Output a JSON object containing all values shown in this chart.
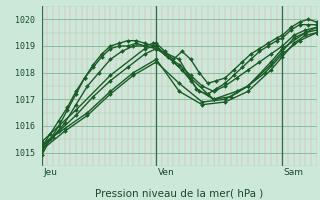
{
  "title": "Pression niveau de la mer( hPa )",
  "ylabel_values": [
    1015,
    1016,
    1017,
    1018,
    1019,
    1020
  ],
  "ylim": [
    1014.5,
    1020.5
  ],
  "xlim": [
    0,
    96
  ],
  "background_color": "#cce8d8",
  "line_color": "#1a5c28",
  "marker_color": "#1a5c28",
  "day_ticks": [
    0,
    40,
    84
  ],
  "day_labels": [
    "Jeu",
    "Ven",
    "Sam"
  ],
  "series": [
    {
      "x": [
        0,
        3,
        6,
        9,
        12,
        15,
        18,
        21,
        24,
        27,
        30,
        33,
        36,
        39,
        40,
        43,
        46,
        49,
        52,
        55,
        58,
        61,
        64,
        67,
        70,
        73,
        76,
        79,
        82,
        84,
        87,
        90,
        93,
        96
      ],
      "y": [
        1014.9,
        1015.5,
        1016.0,
        1016.6,
        1017.2,
        1017.8,
        1018.2,
        1018.6,
        1018.9,
        1019.0,
        1019.0,
        1019.1,
        1019.0,
        1019.1,
        1019.1,
        1018.8,
        1018.5,
        1018.8,
        1018.5,
        1018.0,
        1017.6,
        1017.7,
        1017.8,
        1018.1,
        1018.4,
        1018.7,
        1018.9,
        1019.1,
        1019.3,
        1019.4,
        1019.7,
        1019.9,
        1020.0,
        1019.9
      ],
      "marker": "D",
      "ms": 2.0,
      "lw": 1.0
    },
    {
      "x": [
        0,
        3,
        6,
        9,
        12,
        15,
        18,
        21,
        24,
        27,
        30,
        33,
        36,
        39,
        40,
        43,
        46,
        49,
        52,
        55,
        58,
        61,
        64,
        67,
        70,
        73,
        76,
        79,
        82,
        84,
        87,
        90,
        93,
        96
      ],
      "y": [
        1015.2,
        1015.7,
        1016.2,
        1016.7,
        1017.3,
        1017.8,
        1018.3,
        1018.7,
        1019.0,
        1019.1,
        1019.2,
        1019.2,
        1019.1,
        1019.0,
        1019.0,
        1018.7,
        1018.4,
        1018.1,
        1017.7,
        1017.3,
        1017.2,
        1017.4,
        1017.6,
        1017.9,
        1018.2,
        1018.5,
        1018.8,
        1019.0,
        1019.2,
        1019.3,
        1019.6,
        1019.8,
        1019.8,
        1019.8
      ],
      "marker": "D",
      "ms": 2.0,
      "lw": 1.0
    },
    {
      "x": [
        0,
        4,
        8,
        12,
        16,
        20,
        24,
        28,
        32,
        36,
        40,
        44,
        48,
        52,
        56,
        60,
        64,
        68,
        72,
        76,
        80,
        84,
        88,
        92,
        96
      ],
      "y": [
        1015.1,
        1015.6,
        1016.1,
        1016.8,
        1017.5,
        1018.0,
        1018.5,
        1018.8,
        1019.0,
        1019.0,
        1018.9,
        1018.6,
        1018.3,
        1017.9,
        1017.5,
        1017.3,
        1017.5,
        1017.8,
        1018.1,
        1018.4,
        1018.7,
        1019.0,
        1019.4,
        1019.6,
        1019.7
      ],
      "marker": "D",
      "ms": 2.0,
      "lw": 1.0
    },
    {
      "x": [
        0,
        6,
        12,
        18,
        24,
        30,
        36,
        40,
        48,
        54,
        60,
        66,
        72,
        78,
        84,
        90,
        96
      ],
      "y": [
        1015.2,
        1015.8,
        1016.4,
        1017.1,
        1017.7,
        1018.2,
        1018.7,
        1018.9,
        1018.5,
        1017.4,
        1017.0,
        1017.1,
        1017.5,
        1018.0,
        1018.7,
        1019.2,
        1019.5
      ],
      "marker": "D",
      "ms": 2.0,
      "lw": 1.0
    },
    {
      "x": [
        0,
        8,
        16,
        24,
        32,
        40,
        48,
        56,
        64,
        72,
        80,
        84,
        88,
        92,
        96
      ],
      "y": [
        1015.1,
        1015.8,
        1016.4,
        1017.2,
        1017.9,
        1018.4,
        1017.6,
        1016.9,
        1017.0,
        1017.5,
        1018.3,
        1018.8,
        1019.3,
        1019.5,
        1019.6
      ],
      "marker": "D",
      "ms": 2.0,
      "lw": 1.0
    },
    {
      "x": [
        0,
        8,
        16,
        24,
        32,
        40,
        48,
        56,
        64,
        72,
        80,
        84,
        88,
        92,
        96
      ],
      "y": [
        1015.3,
        1015.9,
        1016.5,
        1017.3,
        1018.0,
        1018.5,
        1017.3,
        1016.8,
        1016.9,
        1017.3,
        1018.1,
        1018.6,
        1019.1,
        1019.4,
        1019.5
      ],
      "marker": "D",
      "ms": 2.0,
      "lw": 1.0
    },
    {
      "x": [
        0,
        12,
        24,
        36,
        40,
        52,
        60,
        68,
        72,
        80,
        84,
        92,
        96
      ],
      "y": [
        1015.4,
        1016.6,
        1017.9,
        1018.9,
        1019.0,
        1017.8,
        1017.0,
        1017.3,
        1017.5,
        1018.4,
        1018.9,
        1019.5,
        1019.7
      ],
      "marker": "D",
      "ms": 2.0,
      "lw": 1.0
    }
  ]
}
